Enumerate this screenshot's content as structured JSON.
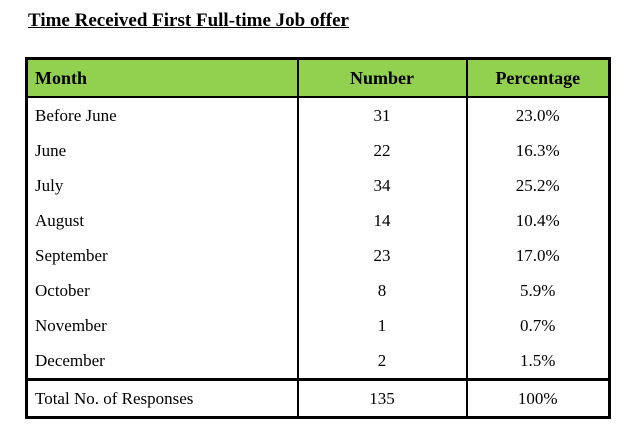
{
  "page": {
    "title": "Time Received First Full-time Job offer"
  },
  "colors": {
    "header_bg": "#92d050",
    "border": "#000000",
    "text": "#000000",
    "page_bg": "#ffffff"
  },
  "table": {
    "columns": [
      "Month",
      "Number",
      "Percentage"
    ],
    "rows": [
      {
        "month": "Before June",
        "number": "31",
        "percentage": "23.0%"
      },
      {
        "month": "June",
        "number": "22",
        "percentage": "16.3%"
      },
      {
        "month": "July",
        "number": "34",
        "percentage": "25.2%"
      },
      {
        "month": "August",
        "number": "14",
        "percentage": "10.4%"
      },
      {
        "month": "September",
        "number": "23",
        "percentage": "17.0%"
      },
      {
        "month": "October",
        "number": "8",
        "percentage": "5.9%"
      },
      {
        "month": "November",
        "number": "1",
        "percentage": "0.7%"
      },
      {
        "month": "December",
        "number": "2",
        "percentage": "1.5%"
      }
    ],
    "total": {
      "label": "Total No. of Responses",
      "number": "135",
      "percentage": "100%"
    }
  }
}
